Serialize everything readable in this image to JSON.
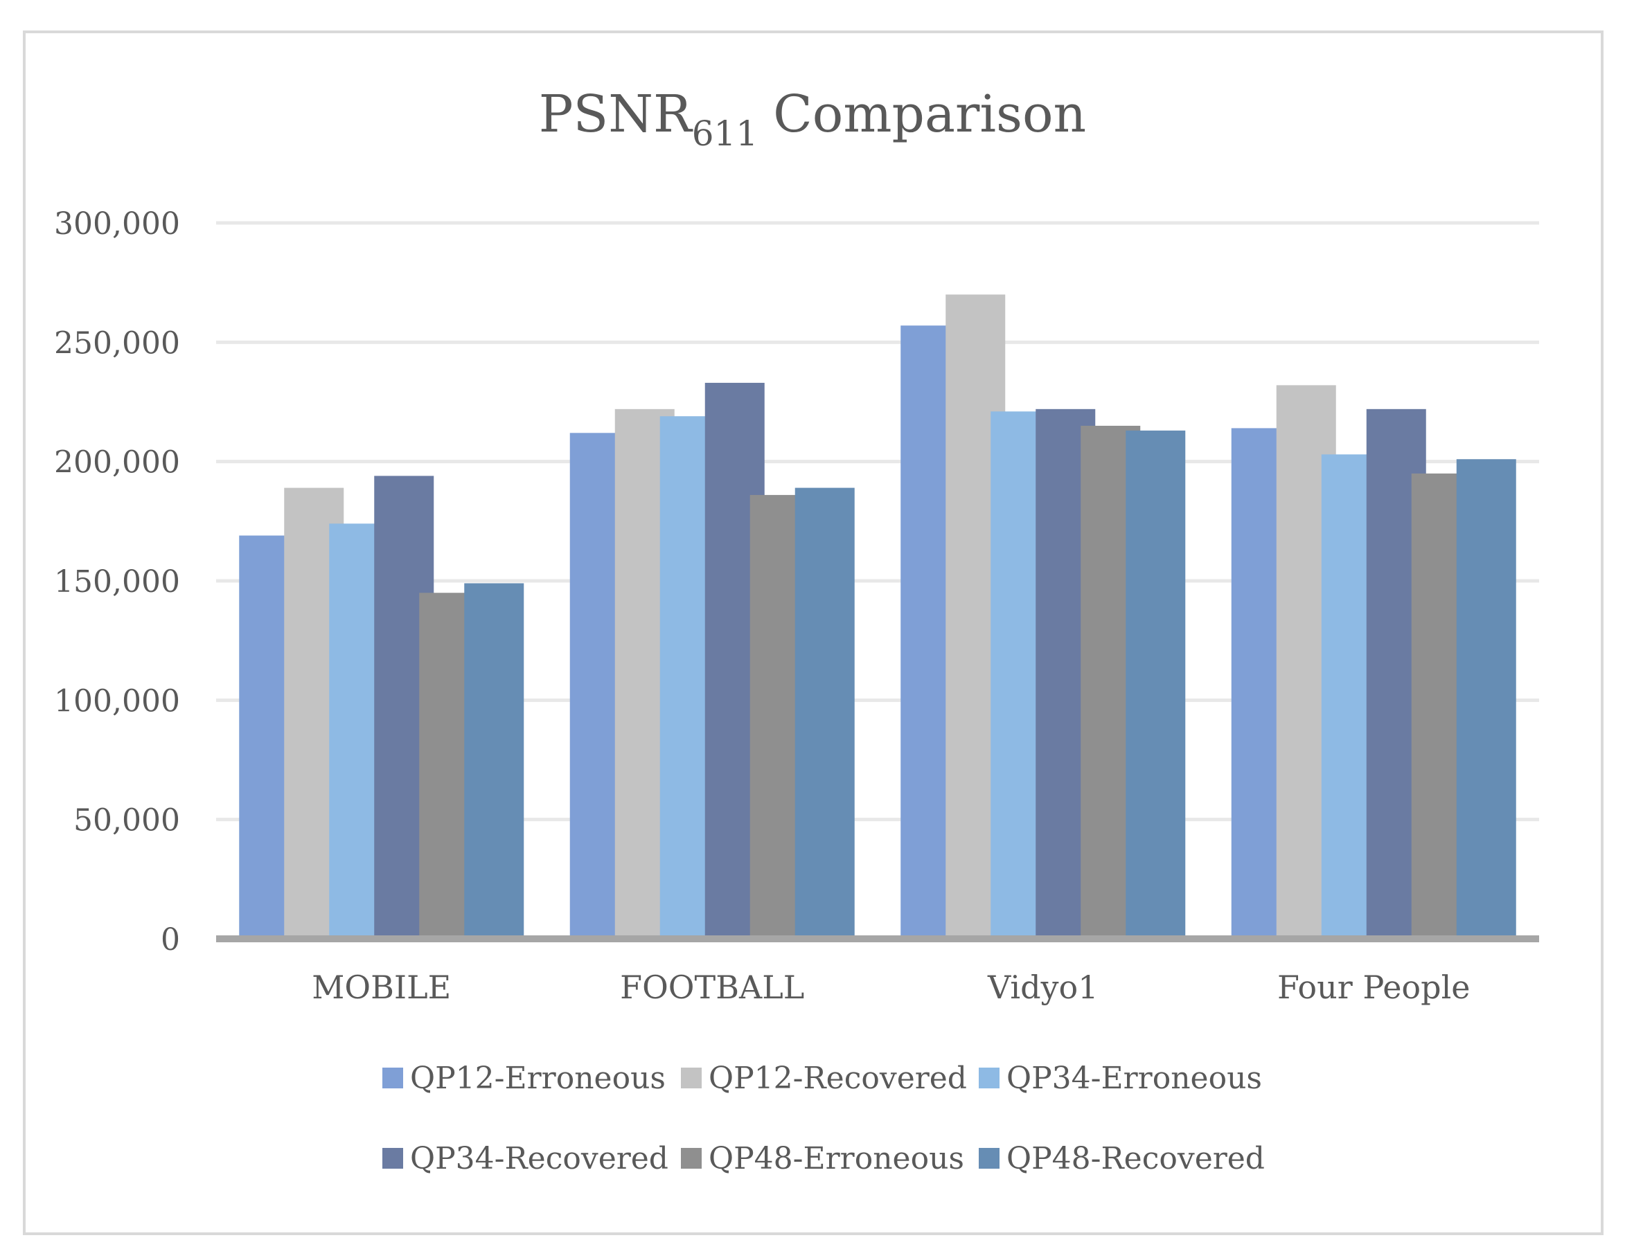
{
  "chart_data": {
    "type": "bar",
    "title": "PSNR",
    "title_subscript": "611",
    "title_suffix": "Comparison",
    "xlabel": "",
    "ylabel": "",
    "ylim": [
      0,
      300000
    ],
    "yticks": [
      0,
      50000,
      100000,
      150000,
      200000,
      250000,
      300000
    ],
    "ytick_labels": [
      "0",
      "50,000",
      "100,000",
      "150,000",
      "200,000",
      "250,000",
      "300,000"
    ],
    "grid": true,
    "legend_position": "bottom",
    "categories": [
      "MOBILE",
      "FOOTBALL",
      "Vidyo1",
      "Four People"
    ],
    "series": [
      {
        "name": "QP12-Erroneous",
        "color": "#7f9fd6",
        "values": [
          169000,
          212000,
          257000,
          214000
        ]
      },
      {
        "name": "QP12-Recovered",
        "color": "#c3c3c3",
        "values": [
          189000,
          222000,
          270000,
          232000
        ]
      },
      {
        "name": "QP34-Erroneous",
        "color": "#8ebae4",
        "values": [
          174000,
          219000,
          221000,
          203000
        ]
      },
      {
        "name": "QP34-Recovered",
        "color": "#6a7ba2",
        "values": [
          194000,
          233000,
          222000,
          222000
        ]
      },
      {
        "name": "QP48-Erroneous",
        "color": "#8f8f8f",
        "values": [
          145000,
          186000,
          215000,
          195000
        ]
      },
      {
        "name": "QP48-Recovered",
        "color": "#668db4",
        "values": [
          149000,
          189000,
          213000,
          201000
        ]
      }
    ]
  }
}
